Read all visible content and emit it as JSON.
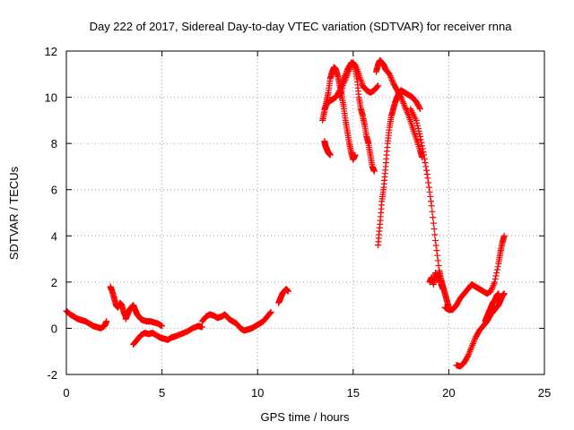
{
  "chart_data": {
    "type": "scatter",
    "title": "Day 222 of 2017, Sidereal Day-to-day VTEC variation (SDTVAR) for receiver rnna",
    "xlabel": "GPS time / hours",
    "ylabel": "SDTVAR / TECUs",
    "xlim": [
      0,
      25
    ],
    "ylim": [
      -2,
      12
    ],
    "xticks": [
      "0",
      "5",
      "10",
      "15",
      "20",
      "25"
    ],
    "yticks": [
      "-2",
      "0",
      "2",
      "4",
      "6",
      "8",
      "10",
      "12"
    ],
    "grid": true,
    "marker": "+",
    "color": "#ff0000",
    "series": [
      {
        "name": "seg1",
        "x": [
          0.0,
          0.2,
          0.4,
          0.6,
          0.8,
          1.0,
          1.2,
          1.4,
          1.6,
          1.8,
          2.0,
          2.1
        ],
        "y": [
          0.75,
          0.6,
          0.5,
          0.4,
          0.35,
          0.3,
          0.2,
          0.1,
          0.05,
          0.0,
          0.1,
          0.3
        ]
      },
      {
        "name": "seg2",
        "x": [
          2.3,
          2.4,
          2.5,
          2.6,
          2.7,
          2.8,
          2.9,
          3.0,
          3.1
        ],
        "y": [
          1.8,
          1.6,
          1.3,
          1.0,
          0.9,
          1.1,
          1.0,
          0.7,
          0.5
        ]
      },
      {
        "name": "seg3",
        "x": [
          3.1,
          3.2,
          3.3,
          3.4,
          3.5,
          3.6,
          3.7,
          3.8,
          3.9,
          4.0,
          4.2,
          4.4,
          4.6,
          4.8,
          5.0
        ],
        "y": [
          0.4,
          0.6,
          0.8,
          0.9,
          1.0,
          0.8,
          0.6,
          0.5,
          0.4,
          0.35,
          0.3,
          0.3,
          0.25,
          0.2,
          0.1
        ]
      },
      {
        "name": "seg4",
        "x": [
          3.5,
          3.7,
          3.9,
          4.1,
          4.3,
          4.5,
          4.7,
          4.9,
          5.1,
          5.3,
          5.5,
          5.7,
          6.0,
          6.3,
          6.6,
          6.9,
          7.1
        ],
        "y": [
          -0.7,
          -0.5,
          -0.3,
          -0.2,
          -0.25,
          -0.2,
          -0.3,
          -0.4,
          -0.45,
          -0.5,
          -0.4,
          -0.35,
          -0.25,
          -0.15,
          0.0,
          0.1,
          0.05
        ]
      },
      {
        "name": "seg5",
        "x": [
          7.1,
          7.3,
          7.5,
          7.7,
          7.9,
          8.1,
          8.3,
          8.5,
          8.7,
          8.9,
          9.1,
          9.3,
          9.5,
          9.7,
          9.9,
          10.1,
          10.3,
          10.5,
          10.7
        ],
        "y": [
          0.3,
          0.5,
          0.6,
          0.55,
          0.45,
          0.5,
          0.6,
          0.4,
          0.3,
          0.2,
          0.0,
          -0.1,
          -0.05,
          0.0,
          0.1,
          0.2,
          0.3,
          0.5,
          0.7
        ]
      },
      {
        "name": "seg6",
        "x": [
          11.1,
          11.2,
          11.3,
          11.4,
          11.5,
          11.6
        ],
        "y": [
          1.1,
          1.3,
          1.5,
          1.6,
          1.7,
          1.6
        ]
      },
      {
        "name": "seg7",
        "x": [
          13.5,
          13.55,
          13.6,
          13.65,
          13.7,
          13.75,
          13.8
        ],
        "y": [
          8.1,
          7.9,
          7.8,
          7.7,
          7.6,
          7.55,
          7.5
        ]
      },
      {
        "name": "seg8",
        "x": [
          13.4,
          13.5,
          13.6,
          13.7,
          13.8,
          13.9,
          14.0,
          14.1,
          14.2,
          14.3,
          14.4,
          14.5,
          14.6,
          14.7,
          14.8,
          14.9,
          15.0,
          15.1
        ],
        "y": [
          9.0,
          9.4,
          9.8,
          10.2,
          10.8,
          11.1,
          11.3,
          11.2,
          10.9,
          10.5,
          10.1,
          9.6,
          9.0,
          8.5,
          8.0,
          7.6,
          7.3,
          7.5
        ]
      },
      {
        "name": "seg9",
        "x": [
          13.5,
          13.7,
          13.9,
          14.1,
          14.3,
          14.5,
          14.7,
          14.9,
          15.1,
          15.3,
          15.5,
          15.7,
          15.9,
          16.1,
          16.3
        ],
        "y": [
          9.5,
          9.8,
          9.9,
          10.0,
          10.3,
          10.8,
          11.2,
          11.5,
          11.4,
          11.0,
          10.5,
          10.3,
          10.2,
          10.3,
          10.5
        ]
      },
      {
        "name": "seg10",
        "x": [
          14.3,
          14.5,
          14.7,
          14.9,
          15.0,
          15.1,
          15.2,
          15.3,
          15.4,
          15.5,
          15.6,
          15.7,
          15.8,
          15.9,
          16.0,
          16.1
        ],
        "y": [
          10.0,
          10.6,
          11.0,
          11.4,
          11.5,
          11.3,
          10.8,
          10.0,
          9.5,
          9.2,
          8.8,
          8.3,
          8.0,
          7.5,
          7.0,
          6.8
        ]
      },
      {
        "name": "seg11",
        "x": [
          16.3,
          16.4,
          16.5,
          16.6,
          16.7,
          16.8,
          16.9,
          17.0,
          17.1,
          17.2,
          17.3,
          17.4,
          17.5,
          17.7,
          17.9,
          18.1,
          18.3,
          18.5
        ],
        "y": [
          3.6,
          4.5,
          5.5,
          6.1,
          7.0,
          8.0,
          8.7,
          9.2,
          9.5,
          9.8,
          10.0,
          10.2,
          10.3,
          10.2,
          10.1,
          10.0,
          9.8,
          9.5
        ]
      },
      {
        "name": "seg12",
        "x": [
          16.2,
          16.3,
          16.4,
          16.5,
          16.6,
          16.7,
          16.9,
          17.1,
          17.3,
          17.5,
          17.7,
          17.9,
          18.1,
          18.3,
          18.5,
          18.6
        ],
        "y": [
          11.1,
          11.4,
          11.6,
          11.5,
          11.4,
          11.2,
          11.0,
          10.6,
          10.3,
          10.0,
          9.6,
          9.2,
          8.7,
          8.2,
          7.7,
          7.4
        ]
      },
      {
        "name": "seg13",
        "x": [
          18.0,
          18.3,
          18.5,
          18.7,
          18.9,
          19.1,
          19.3,
          19.5,
          19.6,
          19.7,
          19.8,
          19.9,
          20.0
        ],
        "y": [
          9.5,
          9.0,
          8.3,
          7.5,
          6.5,
          5.3,
          3.8,
          2.5,
          2.1,
          1.8,
          1.5,
          1.2,
          0.9
        ]
      },
      {
        "name": "seg14",
        "x": [
          19.0,
          19.1,
          19.2,
          19.3,
          19.4,
          19.5,
          19.6,
          19.7
        ],
        "y": [
          2.0,
          2.2,
          1.9,
          2.4,
          2.1,
          2.3,
          1.9,
          1.7
        ]
      },
      {
        "name": "seg15",
        "x": [
          19.8,
          20.0,
          20.2,
          20.4,
          20.6,
          20.8,
          21.0,
          21.2,
          21.4,
          21.6,
          21.8,
          22.0,
          22.2,
          22.4,
          22.6,
          22.7,
          22.8,
          22.9
        ],
        "y": [
          0.9,
          0.8,
          0.8,
          1.0,
          1.3,
          1.5,
          1.7,
          1.9,
          1.8,
          1.7,
          1.6,
          1.5,
          1.6,
          2.0,
          2.8,
          3.3,
          3.7,
          4.0
        ]
      },
      {
        "name": "seg16",
        "x": [
          20.4,
          20.6,
          20.8,
          21.0,
          21.2,
          21.4,
          21.6,
          21.8,
          22.0,
          22.2,
          22.4,
          22.6,
          22.7,
          22.8,
          22.9
        ],
        "y": [
          -1.6,
          -1.65,
          -1.5,
          -1.2,
          -0.8,
          -0.4,
          -0.1,
          0.1,
          0.3,
          0.6,
          0.8,
          1.0,
          1.2,
          1.4,
          1.5
        ]
      },
      {
        "name": "seg17",
        "x": [
          21.9,
          22.0,
          22.1,
          22.2,
          22.3,
          22.4,
          22.5,
          22.6
        ],
        "y": [
          0.3,
          0.5,
          0.7,
          0.9,
          1.1,
          1.2,
          1.4,
          1.5
        ]
      }
    ]
  }
}
